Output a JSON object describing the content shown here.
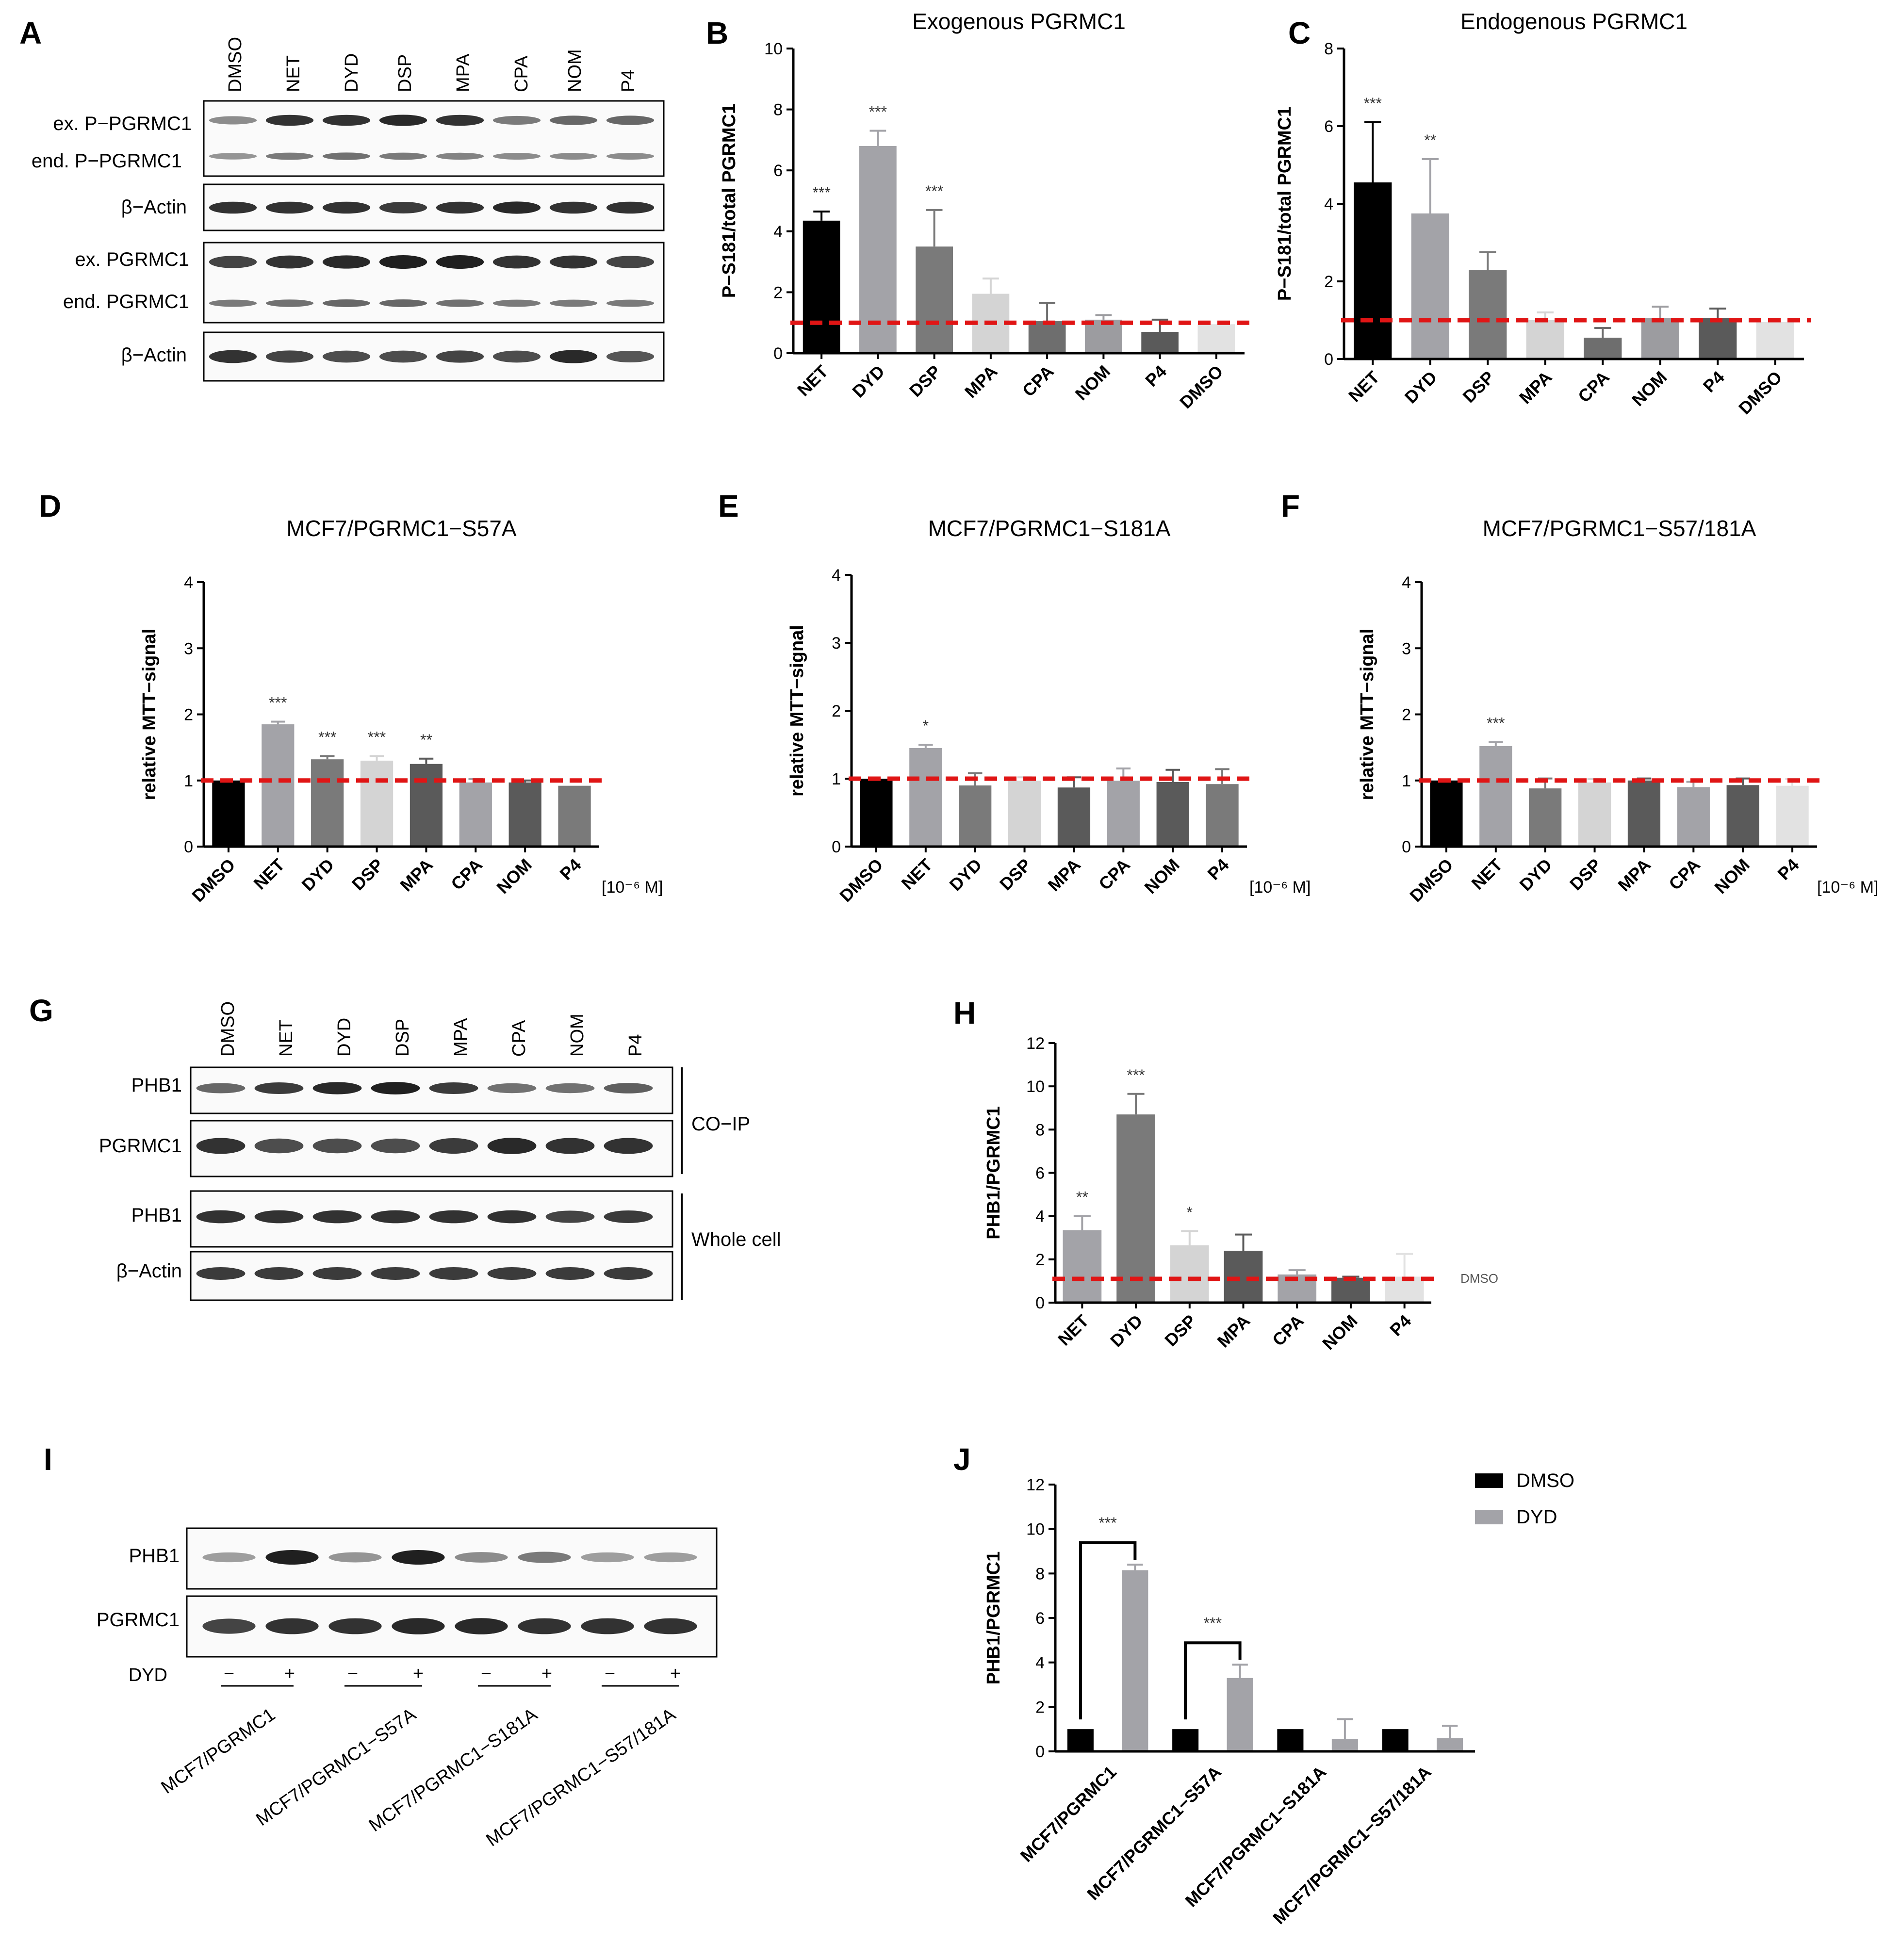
{
  "panel_letters": {
    "A": "A",
    "B": "B",
    "C": "C",
    "D": "D",
    "E": "E",
    "F": "F",
    "G": "G",
    "H": "H",
    "I": "I",
    "J": "J"
  },
  "blot_A": {
    "lanes": [
      "DMSO",
      "NET",
      "DYD",
      "DSP",
      "MPA",
      "CPA",
      "NOM",
      "P4"
    ],
    "labels": [
      "ex. P−PGRMC1",
      "end. P−PGRMC1",
      "β−Actin",
      "ex. PGRMC1",
      "end. PGRMC1",
      "β−Actin"
    ]
  },
  "blot_G": {
    "lanes": [
      "DMSO",
      "NET",
      "DYD",
      "DSP",
      "MPA",
      "CPA",
      "NOM",
      "P4"
    ],
    "labels": [
      "PHB1",
      "PGRMC1",
      "PHB1",
      "β−Actin"
    ],
    "groups": [
      "CO−IP",
      "Whole cell"
    ]
  },
  "blot_I": {
    "labels": [
      "PHB1",
      "PGRMC1"
    ],
    "dyd_label": "DYD",
    "signs": [
      "−",
      "+",
      "−",
      "+",
      "−",
      "+",
      "−",
      "+"
    ],
    "groups": [
      "MCF7/PGRMC1",
      "MCF7/PGRMC1−S57A",
      "MCF7/PGRMC1−S181A",
      "MCF7/PGRMC1−S57/181A"
    ]
  },
  "units_label": "[10⁻⁶ M]",
  "chart_data": [
    {
      "id": "B",
      "type": "bar",
      "title": "Exogenous PGRMC1",
      "ylabel": "P−S181/total PGRMC1",
      "ylim": [
        0,
        10
      ],
      "yticks": [
        0,
        2,
        4,
        6,
        8,
        10
      ],
      "categories": [
        "NET",
        "DYD",
        "DSP",
        "MPA",
        "CPA",
        "NOM",
        "P4",
        "DMSO"
      ],
      "values": [
        4.35,
        6.8,
        3.5,
        1.95,
        1.05,
        1.1,
        0.7,
        0.95
      ],
      "errors": [
        0.3,
        0.5,
        1.2,
        0.5,
        0.6,
        0.15,
        0.4,
        0
      ],
      "significance": [
        "***",
        "***",
        "***",
        "",
        "",
        "",
        "",
        ""
      ],
      "colors": [
        "#000000",
        "#a3a3a8",
        "#7a7a7a",
        "#d4d4d4",
        "#6e6e6e",
        "#9c9ca0",
        "#5a5a5a",
        "#e2e2e2"
      ],
      "reference_line": 1
    },
    {
      "id": "C",
      "type": "bar",
      "title": "Endogenous PGRMC1",
      "ylabel": "P−S181/total PGRMC1",
      "ylim": [
        0,
        8
      ],
      "yticks": [
        0,
        2,
        4,
        6,
        8
      ],
      "categories": [
        "NET",
        "DYD",
        "DSP",
        "MPA",
        "CPA",
        "NOM",
        "P4",
        "DMSO"
      ],
      "values": [
        4.55,
        3.75,
        2.3,
        1.0,
        0.55,
        1.05,
        1.05,
        0.95
      ],
      "errors": [
        1.55,
        1.4,
        0.45,
        0.2,
        0.25,
        0.3,
        0.25,
        0
      ],
      "significance": [
        "***",
        "**",
        "",
        "",
        "",
        "",
        "",
        ""
      ],
      "colors": [
        "#000000",
        "#a3a3a8",
        "#7a7a7a",
        "#d4d4d4",
        "#6e6e6e",
        "#9c9ca0",
        "#5a5a5a",
        "#e2e2e2"
      ],
      "reference_line": 1
    },
    {
      "id": "D",
      "type": "bar",
      "title": "MCF7/PGRMC1−S57A",
      "ylabel": "relative MTT−signal",
      "ylim": [
        0,
        4
      ],
      "yticks": [
        0,
        1,
        2,
        3,
        4
      ],
      "categories": [
        "DMSO",
        "NET",
        "DYD",
        "DSP",
        "MPA",
        "CPA",
        "NOM",
        "P4"
      ],
      "values": [
        1.0,
        1.85,
        1.32,
        1.3,
        1.25,
        0.97,
        0.97,
        0.92
      ],
      "errors": [
        0,
        0.04,
        0.05,
        0.07,
        0.08,
        0.05,
        0.03,
        0
      ],
      "significance": [
        "",
        "***",
        "***",
        "***",
        "**",
        "",
        "",
        ""
      ],
      "colors": [
        "#000000",
        "#a3a3a8",
        "#7a7a7a",
        "#d4d4d4",
        "#5a5a5a",
        "#a3a3a8",
        "#5a5a5a",
        "#7a7a7a"
      ],
      "reference_line": 1
    },
    {
      "id": "E",
      "type": "bar",
      "title": "MCF7/PGRMC1−S181A",
      "ylabel": "relative MTT−signal",
      "ylim": [
        0,
        4
      ],
      "yticks": [
        0,
        1,
        2,
        3,
        4
      ],
      "categories": [
        "DMSO",
        "NET",
        "DYD",
        "DSP",
        "MPA",
        "CPA",
        "NOM",
        "P4"
      ],
      "values": [
        1.0,
        1.45,
        0.9,
        0.97,
        0.87,
        0.97,
        0.95,
        0.92
      ],
      "errors": [
        0,
        0.05,
        0.18,
        0.05,
        0.15,
        0.18,
        0.18,
        0.22
      ],
      "significance": [
        "",
        "*",
        "",
        "",
        "",
        "",
        "",
        ""
      ],
      "colors": [
        "#000000",
        "#a3a3a8",
        "#7a7a7a",
        "#d4d4d4",
        "#5a5a5a",
        "#a3a3a8",
        "#5a5a5a",
        "#7a7a7a"
      ],
      "reference_line": 1
    },
    {
      "id": "F",
      "type": "bar",
      "title": "MCF7/PGRMC1−S57/181A",
      "ylabel": "relative MTT−signal",
      "ylim": [
        0,
        4
      ],
      "yticks": [
        0,
        1,
        2,
        3,
        4
      ],
      "categories": [
        "DMSO",
        "NET",
        "DYD",
        "DSP",
        "MPA",
        "CPA",
        "NOM",
        "P4"
      ],
      "values": [
        1.0,
        1.52,
        0.88,
        0.97,
        1.0,
        0.9,
        0.93,
        0.92
      ],
      "errors": [
        0,
        0.06,
        0.15,
        0.05,
        0.03,
        0.08,
        0.1,
        0.1
      ],
      "significance": [
        "",
        "***",
        "",
        "",
        "",
        "",
        "",
        ""
      ],
      "colors": [
        "#000000",
        "#a3a3a8",
        "#7a7a7a",
        "#d4d4d4",
        "#5a5a5a",
        "#a3a3a8",
        "#5a5a5a",
        "#e2e2e2"
      ],
      "reference_line": 1
    },
    {
      "id": "H",
      "type": "bar",
      "title": "",
      "ylabel": "PHB1/PGRMC1",
      "ylim": [
        0,
        12
      ],
      "yticks": [
        0,
        2,
        4,
        6,
        8,
        10,
        12
      ],
      "categories": [
        "NET",
        "DYD",
        "DSP",
        "MPA",
        "CPA",
        "NOM",
        "P4"
      ],
      "values": [
        3.35,
        8.7,
        2.65,
        2.4,
        1.3,
        1.15,
        1.2
      ],
      "errors": [
        0.65,
        0.95,
        0.65,
        0.75,
        0.2,
        0.05,
        1.05
      ],
      "significance": [
        "**",
        "***",
        "*",
        "",
        "",
        "",
        ""
      ],
      "colors": [
        "#a3a3a8",
        "#7a7a7a",
        "#d4d4d4",
        "#5a5a5a",
        "#a3a3a8",
        "#5a5a5a",
        "#e2e2e2"
      ],
      "reference_line": 1.1,
      "reference_label": "DMSO"
    },
    {
      "id": "J",
      "type": "bar",
      "title": "",
      "ylabel": "PHB1/PGRMC1",
      "ylim": [
        0,
        12
      ],
      "yticks": [
        0,
        2,
        4,
        6,
        8,
        10,
        12
      ],
      "categories": [
        "MCF7/PGRMC1",
        "MCF7/PGRMC1−S57A",
        "MCF7/PGRMC1−S181A",
        "MCF7/PGRMC1−S57/181A"
      ],
      "series": [
        {
          "name": "DMSO",
          "color": "#000000",
          "values": [
            1,
            1,
            1,
            1
          ],
          "errors": [
            0,
            0,
            0,
            0
          ]
        },
        {
          "name": "DYD",
          "color": "#a3a3a8",
          "values": [
            8.15,
            3.3,
            0.55,
            0.6
          ],
          "errors": [
            0.25,
            0.6,
            0.9,
            0.55
          ]
        }
      ],
      "brackets": [
        {
          "group": 0,
          "label": "***"
        },
        {
          "group": 1,
          "label": "***"
        }
      ]
    }
  ]
}
